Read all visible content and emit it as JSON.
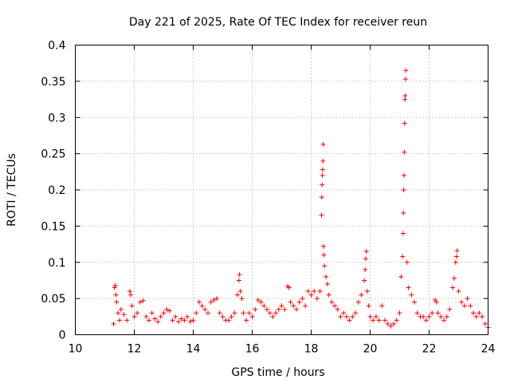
{
  "chart_data": {
    "type": "scatter",
    "title": "Day 221 of 2025, Rate Of TEC Index for receiver reun",
    "xlabel": "GPS time / hours",
    "ylabel": "ROTI / TECUs",
    "xlim": [
      10,
      24
    ],
    "ylim": [
      0,
      0.4
    ],
    "x_ticks": [
      10,
      12,
      14,
      16,
      18,
      20,
      22,
      24
    ],
    "x_tick_labels": [
      "10",
      "12",
      "14",
      "16",
      "18",
      "20",
      "22",
      "24"
    ],
    "y_ticks": [
      0,
      0.05,
      0.1,
      0.15,
      0.2,
      0.25,
      0.3,
      0.35,
      0.4
    ],
    "y_tick_labels": [
      "0",
      "0.05",
      "0.1",
      "0.15",
      "0.2",
      "0.25",
      "0.3",
      "0.35",
      "0.4"
    ],
    "grid": true,
    "marker": "+",
    "series": [
      {
        "name": "ROTI",
        "color": "#ff0000",
        "points": [
          [
            11.3,
            0.015
          ],
          [
            11.33,
            0.065
          ],
          [
            11.36,
            0.068
          ],
          [
            11.38,
            0.055
          ],
          [
            11.4,
            0.045
          ],
          [
            11.45,
            0.03
          ],
          [
            11.5,
            0.02
          ],
          [
            11.55,
            0.035
          ],
          [
            11.65,
            0.028
          ],
          [
            11.75,
            0.02
          ],
          [
            11.85,
            0.06
          ],
          [
            11.88,
            0.055
          ],
          [
            11.92,
            0.04
          ],
          [
            12.0,
            0.025
          ],
          [
            12.1,
            0.03
          ],
          [
            12.2,
            0.045
          ],
          [
            12.3,
            0.047
          ],
          [
            12.4,
            0.025
          ],
          [
            12.5,
            0.02
          ],
          [
            12.6,
            0.03
          ],
          [
            12.7,
            0.022
          ],
          [
            12.8,
            0.018
          ],
          [
            12.9,
            0.025
          ],
          [
            13.0,
            0.03
          ],
          [
            13.1,
            0.035
          ],
          [
            13.2,
            0.033
          ],
          [
            13.3,
            0.02
          ],
          [
            13.4,
            0.025
          ],
          [
            13.5,
            0.018
          ],
          [
            13.6,
            0.022
          ],
          [
            13.7,
            0.02
          ],
          [
            13.8,
            0.025
          ],
          [
            13.9,
            0.018
          ],
          [
            14.0,
            0.02
          ],
          [
            14.1,
            0.03
          ],
          [
            14.2,
            0.045
          ],
          [
            14.3,
            0.04
          ],
          [
            14.4,
            0.035
          ],
          [
            14.5,
            0.03
          ],
          [
            14.6,
            0.045
          ],
          [
            14.7,
            0.048
          ],
          [
            14.8,
            0.05
          ],
          [
            14.9,
            0.03
          ],
          [
            15.0,
            0.025
          ],
          [
            15.1,
            0.02
          ],
          [
            15.2,
            0.02
          ],
          [
            15.3,
            0.025
          ],
          [
            15.4,
            0.03
          ],
          [
            15.5,
            0.055
          ],
          [
            15.55,
            0.075
          ],
          [
            15.57,
            0.083
          ],
          [
            15.6,
            0.06
          ],
          [
            15.65,
            0.05
          ],
          [
            15.7,
            0.03
          ],
          [
            15.8,
            0.02
          ],
          [
            15.9,
            0.03
          ],
          [
            16.0,
            0.025
          ],
          [
            16.1,
            0.035
          ],
          [
            16.2,
            0.048
          ],
          [
            16.3,
            0.045
          ],
          [
            16.4,
            0.04
          ],
          [
            16.5,
            0.035
          ],
          [
            16.6,
            0.03
          ],
          [
            16.7,
            0.025
          ],
          [
            16.8,
            0.03
          ],
          [
            16.9,
            0.035
          ],
          [
            17.0,
            0.04
          ],
          [
            17.1,
            0.035
          ],
          [
            17.2,
            0.067
          ],
          [
            17.25,
            0.065
          ],
          [
            17.3,
            0.045
          ],
          [
            17.4,
            0.04
          ],
          [
            17.5,
            0.035
          ],
          [
            17.6,
            0.045
          ],
          [
            17.7,
            0.05
          ],
          [
            17.8,
            0.04
          ],
          [
            17.9,
            0.06
          ],
          [
            18.0,
            0.055
          ],
          [
            18.1,
            0.06
          ],
          [
            18.2,
            0.05
          ],
          [
            18.3,
            0.06
          ],
          [
            18.35,
            0.165
          ],
          [
            18.36,
            0.19
          ],
          [
            18.37,
            0.207
          ],
          [
            18.38,
            0.22
          ],
          [
            18.39,
            0.228
          ],
          [
            18.4,
            0.24
          ],
          [
            18.41,
            0.263
          ],
          [
            18.42,
            0.122
          ],
          [
            18.43,
            0.11
          ],
          [
            18.45,
            0.095
          ],
          [
            18.5,
            0.08
          ],
          [
            18.55,
            0.07
          ],
          [
            18.6,
            0.055
          ],
          [
            18.7,
            0.045
          ],
          [
            18.8,
            0.04
          ],
          [
            18.9,
            0.035
          ],
          [
            19.0,
            0.025
          ],
          [
            19.1,
            0.03
          ],
          [
            19.2,
            0.025
          ],
          [
            19.3,
            0.02
          ],
          [
            19.4,
            0.025
          ],
          [
            19.5,
            0.03
          ],
          [
            19.6,
            0.045
          ],
          [
            19.7,
            0.055
          ],
          [
            19.8,
            0.075
          ],
          [
            19.83,
            0.09
          ],
          [
            19.85,
            0.105
          ],
          [
            19.87,
            0.115
          ],
          [
            19.9,
            0.06
          ],
          [
            19.95,
            0.04
          ],
          [
            20.0,
            0.025
          ],
          [
            20.1,
            0.02
          ],
          [
            20.2,
            0.025
          ],
          [
            20.3,
            0.02
          ],
          [
            20.4,
            0.04
          ],
          [
            20.5,
            0.02
          ],
          [
            20.6,
            0.015
          ],
          [
            20.7,
            0.012
          ],
          [
            20.8,
            0.015
          ],
          [
            20.9,
            0.02
          ],
          [
            21.0,
            0.03
          ],
          [
            21.05,
            0.08
          ],
          [
            21.1,
            0.108
          ],
          [
            21.12,
            0.14
          ],
          [
            21.13,
            0.168
          ],
          [
            21.14,
            0.2
          ],
          [
            21.15,
            0.22
          ],
          [
            21.16,
            0.252
          ],
          [
            21.17,
            0.292
          ],
          [
            21.18,
            0.325
          ],
          [
            21.19,
            0.33
          ],
          [
            21.2,
            0.353
          ],
          [
            21.21,
            0.365
          ],
          [
            21.25,
            0.1
          ],
          [
            21.3,
            0.065
          ],
          [
            21.4,
            0.055
          ],
          [
            21.5,
            0.045
          ],
          [
            21.6,
            0.03
          ],
          [
            21.7,
            0.025
          ],
          [
            21.8,
            0.025
          ],
          [
            21.9,
            0.02
          ],
          [
            22.0,
            0.025
          ],
          [
            22.1,
            0.03
          ],
          [
            22.2,
            0.048
          ],
          [
            22.25,
            0.045
          ],
          [
            22.3,
            0.03
          ],
          [
            22.4,
            0.025
          ],
          [
            22.5,
            0.02
          ],
          [
            22.6,
            0.025
          ],
          [
            22.7,
            0.035
          ],
          [
            22.8,
            0.065
          ],
          [
            22.85,
            0.078
          ],
          [
            22.9,
            0.1
          ],
          [
            22.93,
            0.108
          ],
          [
            22.95,
            0.116
          ],
          [
            23.0,
            0.06
          ],
          [
            23.1,
            0.045
          ],
          [
            23.2,
            0.04
          ],
          [
            23.3,
            0.05
          ],
          [
            23.4,
            0.04
          ],
          [
            23.5,
            0.03
          ],
          [
            23.6,
            0.025
          ],
          [
            23.7,
            0.03
          ],
          [
            23.8,
            0.025
          ],
          [
            23.9,
            0.015
          ],
          [
            24.0,
            0.01
          ]
        ]
      }
    ]
  }
}
